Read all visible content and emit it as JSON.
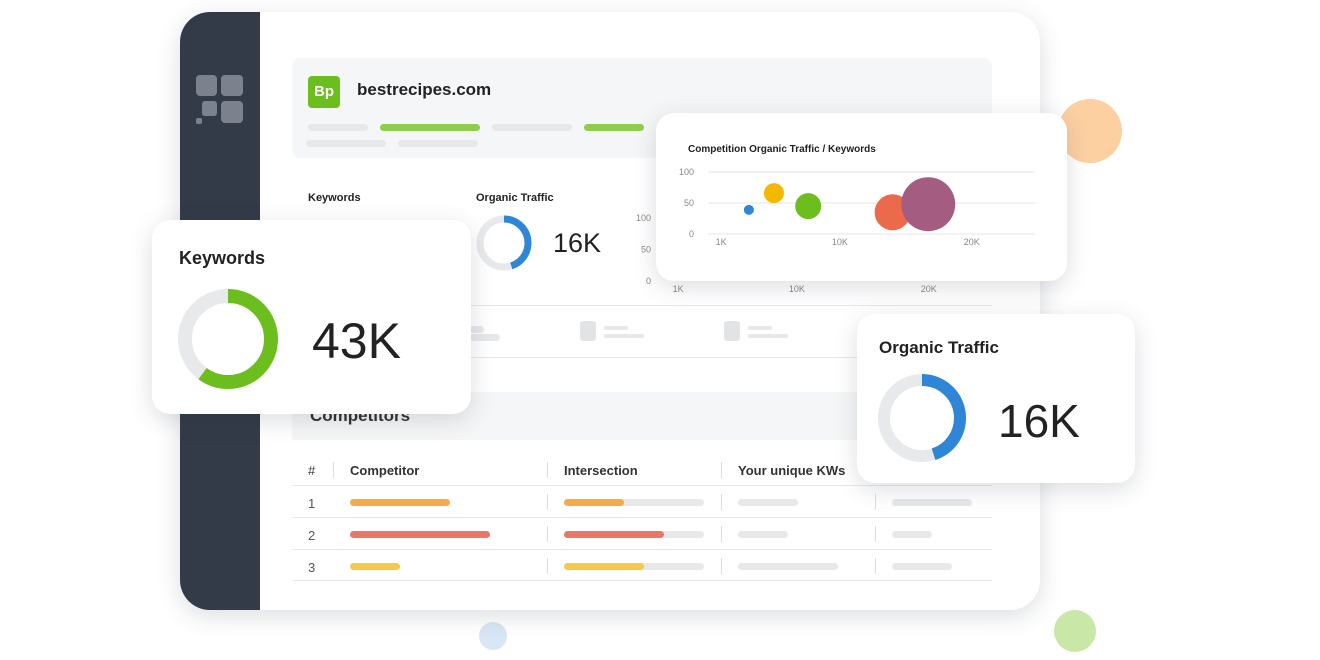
{
  "site": {
    "badge": "Bp",
    "domain": "bestrecipes.com"
  },
  "stats": {
    "keywords_label": "Keywords",
    "traffic_label": "Organic Traffic",
    "traffic_value": "16K"
  },
  "keywords_card": {
    "title": "Keywords",
    "value": "43K",
    "share": 60,
    "color": "#6cbe1f"
  },
  "traffic_card": {
    "title": "Organic Traffic",
    "value": "16K",
    "share": 45,
    "color": "#2f86d6"
  },
  "competitors": {
    "title": "Competitors",
    "headers": [
      "#",
      "Competitor",
      "Intersection",
      "Your unique KWs"
    ],
    "rows": [
      "1",
      "2",
      "3"
    ]
  },
  "chart_data": {
    "type": "bubble",
    "title": "Competition Organic Traffic / Keywords",
    "x": [
      3100,
      5000,
      7600,
      14000,
      16700
    ],
    "values": [
      39,
      66,
      45,
      35,
      48
    ],
    "sizes": [
      5,
      10,
      13,
      18,
      27
    ],
    "colors": [
      "#2f86d6",
      "#f5b800",
      "#6cbe1f",
      "#ec6a4c",
      "#a45c80"
    ],
    "xlim": [
      0,
      24800
    ],
    "ylim": [
      0,
      100
    ],
    "xticks": [
      {
        "value": 1000,
        "label": "1K"
      },
      {
        "value": 10000,
        "label": "10K"
      },
      {
        "value": 20000,
        "label": "20K"
      }
    ],
    "yticks": [
      0,
      50,
      100
    ],
    "grid": true
  }
}
